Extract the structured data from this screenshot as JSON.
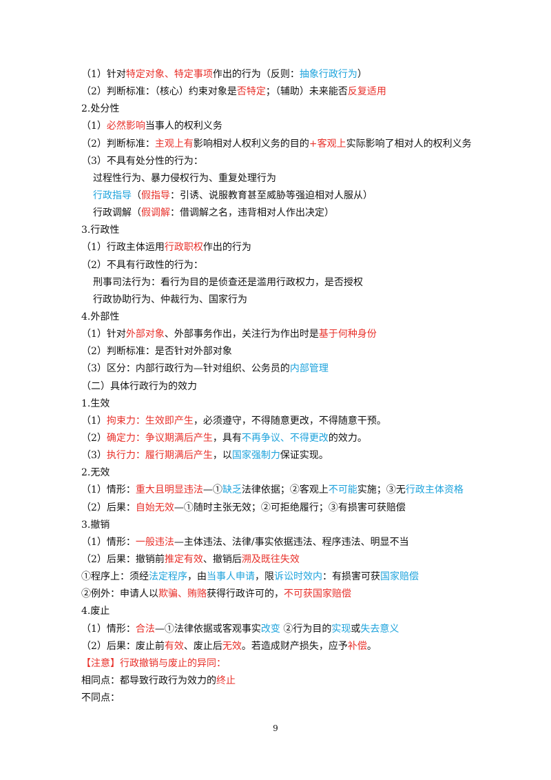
{
  "lines": [
    [
      {
        "text": "（1）针对"
      },
      {
        "text": "特定对象、特定事项",
        "color": "#e8302a"
      },
      {
        "text": "作出的行为（反则："
      },
      {
        "text": "抽象行政行为",
        "color": "#1ea3dc"
      },
      {
        "text": "）"
      }
    ],
    [
      {
        "text": "（2）判断标准：（核心）约束对象是"
      },
      {
        "text": "否特定",
        "color": "#e8302a"
      },
      {
        "text": "；（辅助）未来能否"
      },
      {
        "text": "反复适用",
        "color": "#e8302a"
      }
    ],
    [
      {
        "text": "2.处分性"
      }
    ],
    [
      {
        "text": "（1）"
      },
      {
        "text": "必然影响",
        "color": "#e8302a"
      },
      {
        "text": "当事人的权利义务"
      }
    ],
    [
      {
        "text": "（2）判断标准："
      },
      {
        "text": "主观上有",
        "color": "#e8302a"
      },
      {
        "text": "影响相对人权利义务的目的"
      },
      {
        "text": "+客观上",
        "color": "#e8302a"
      },
      {
        "text": "实际影响了相对人的权利义务"
      }
    ],
    [
      {
        "text": "（3）不具有处分性的行为："
      }
    ],
    [
      {
        "text": "过程性行为、暴力侵权行为、重复处理行为"
      }
    ],
    [
      {
        "text": "行政指导",
        "color": "#1ea3dc"
      },
      {
        "text": "（"
      },
      {
        "text": "假指导",
        "color": "#e8302a"
      },
      {
        "text": "：引诱、说服教育甚至威胁等强迫相对人服从）"
      }
    ],
    [
      {
        "text": "行政调解（"
      },
      {
        "text": "假调解",
        "color": "#e8302a"
      },
      {
        "text": "：借调解之名，违背相对人作出决定）"
      }
    ],
    [
      {
        "text": "3.行政性"
      }
    ],
    [
      {
        "text": "（1）行政主体运用"
      },
      {
        "text": "行政职权",
        "color": "#e8302a"
      },
      {
        "text": "作出的行为"
      }
    ],
    [
      {
        "text": "（2）不具有行政性的行为："
      }
    ],
    [
      {
        "text": "刑事司法行为：看行为目的是侦查还是滥用行政权力，是否授权"
      }
    ],
    [
      {
        "text": "行政协助行为、仲裁行为、国家行为"
      }
    ],
    [
      {
        "text": "4.外部性"
      }
    ],
    [
      {
        "text": "（1）针对"
      },
      {
        "text": "外部对象",
        "color": "#e8302a"
      },
      {
        "text": "、外部事务作出，关注行为作出时是"
      },
      {
        "text": "基于何种身份",
        "color": "#e8302a"
      }
    ],
    [
      {
        "text": "（2）判断标准：是否针对外部对象"
      }
    ],
    [
      {
        "text": "（3）区分：内部行政行为—针对组织、公务员的"
      },
      {
        "text": "内部管理",
        "color": "#1ea3dc"
      }
    ],
    [
      {
        "text": "（二）具体行政行为的效力"
      }
    ],
    [
      {
        "text": "1.生效"
      }
    ],
    [
      {
        "text": "（1）"
      },
      {
        "text": "拘束力：生效即产生",
        "color": "#e8302a"
      },
      {
        "text": "，必须遵守，不得随意更改，不得随意干预。"
      }
    ],
    [
      {
        "text": "（2）"
      },
      {
        "text": "确定力：争议期满后产生",
        "color": "#e8302a"
      },
      {
        "text": "，具有"
      },
      {
        "text": "不再争议、不得更改",
        "color": "#1ea3dc"
      },
      {
        "text": "的效力。"
      }
    ],
    [
      {
        "text": "（3）"
      },
      {
        "text": "执行力：履行期满后产生",
        "color": "#e8302a"
      },
      {
        "text": "，以"
      },
      {
        "text": "国家强制力",
        "color": "#1ea3dc"
      },
      {
        "text": "保证实现。"
      }
    ],
    [
      {
        "text": "2.无效"
      }
    ],
    [
      {
        "text": "（1）情形："
      },
      {
        "text": "重大且明显违法",
        "color": "#e8302a"
      },
      {
        "text": "—①"
      },
      {
        "text": "缺乏",
        "color": "#1ea3dc"
      },
      {
        "text": "法律依据；②客观上"
      },
      {
        "text": "不可能",
        "color": "#1ea3dc"
      },
      {
        "text": "实施；③无"
      },
      {
        "text": "行政主体资格",
        "color": "#1ea3dc"
      }
    ],
    [
      {
        "text": "（2）后果："
      },
      {
        "text": "自始无效",
        "color": "#e8302a"
      },
      {
        "text": "—①随时主张无效；②可拒绝履行；③有损害可获赔偿"
      }
    ],
    [
      {
        "text": "3.撤销"
      }
    ],
    [
      {
        "text": "（1）情形："
      },
      {
        "text": "一般违法",
        "color": "#e8302a"
      },
      {
        "text": "—主体违法、法律/事实依据违法、程序违法、明显不当"
      }
    ],
    [
      {
        "text": "（2）后果：撤销前"
      },
      {
        "text": "推定有效",
        "color": "#e8302a"
      },
      {
        "text": "、撤销后"
      },
      {
        "text": "溯及既往失效",
        "color": "#e8302a"
      }
    ],
    [
      {
        "text": "①程序上：须经"
      },
      {
        "text": "法定程序",
        "color": "#1ea3dc"
      },
      {
        "text": "，由"
      },
      {
        "text": "当事人申请",
        "color": "#1ea3dc"
      },
      {
        "text": "，限"
      },
      {
        "text": "诉讼时效内",
        "color": "#1ea3dc"
      },
      {
        "text": "：有损害可获"
      },
      {
        "text": "国家赔偿",
        "color": "#1ea3dc"
      }
    ],
    [
      {
        "text": "②例外：申请人以"
      },
      {
        "text": "欺骗、贿赂",
        "color": "#e8302a"
      },
      {
        "text": "获得行政许可的，"
      },
      {
        "text": "不可获国家赔偿",
        "color": "#e8302a"
      }
    ],
    [
      {
        "text": "4.废止"
      }
    ],
    [
      {
        "text": "（1）情形："
      },
      {
        "text": "合法",
        "color": "#e8302a"
      },
      {
        "text": "—①法律依据或客观事实"
      },
      {
        "text": "改变",
        "color": "#1ea3dc"
      },
      {
        "text": " ②行为目的"
      },
      {
        "text": "实现",
        "color": "#1ea3dc"
      },
      {
        "text": "或"
      },
      {
        "text": "失去意义",
        "color": "#1ea3dc"
      }
    ],
    [
      {
        "text": "（2）后果：废止前"
      },
      {
        "text": "有效",
        "color": "#e8302a"
      },
      {
        "text": "、废止后"
      },
      {
        "text": "无效",
        "color": "#e8302a"
      },
      {
        "text": "。若造成财产损失，应予"
      },
      {
        "text": "补偿",
        "color": "#e8302a"
      },
      {
        "text": "。"
      }
    ],
    [
      {
        "text": "【注意】行政撤销与废止的异同：",
        "color": "#e8302a"
      }
    ],
    [
      {
        "text": "相同点：都导致行政行为效力的"
      },
      {
        "text": "终止",
        "color": "#e8302a"
      }
    ],
    [
      {
        "text": "不同点："
      }
    ]
  ],
  "page_number": "9"
}
